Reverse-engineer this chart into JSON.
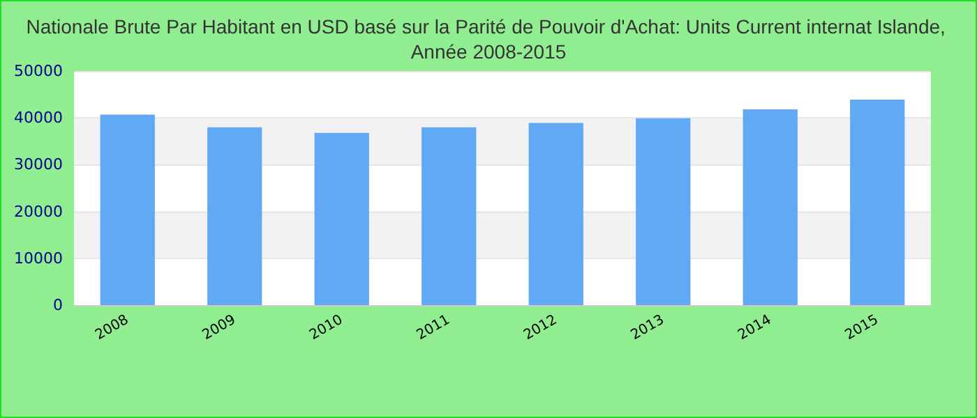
{
  "chart_data": {
    "type": "bar",
    "title": "Nationale Brute Par Habitant en USD basé sur la Parité de Pouvoir d'Achat: Units Current internat Islande, Année 2008-2015",
    "categories": [
      "2008",
      "2009",
      "2010",
      "2011",
      "2012",
      "2013",
      "2014",
      "2015"
    ],
    "values": [
      40700,
      38000,
      36800,
      38000,
      38900,
      39900,
      41800,
      43900
    ],
    "color": "#61a8f5",
    "ylim": [
      0,
      50000
    ],
    "yticks": [
      0,
      10000,
      20000,
      30000,
      40000,
      50000
    ],
    "grid": "y"
  }
}
